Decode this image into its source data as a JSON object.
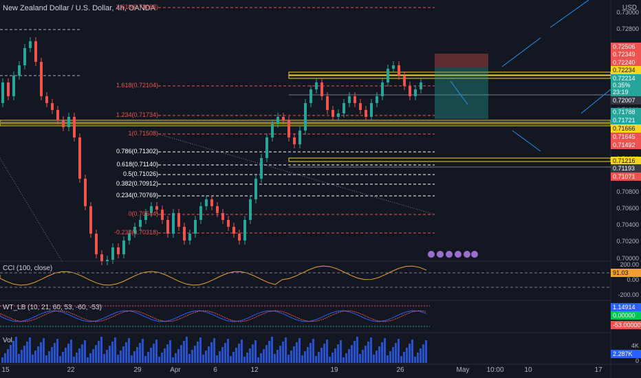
{
  "header": {
    "title": "New Zealand Dollar / U.S. Dollar, 4h, OANDA",
    "currency": "USD"
  },
  "price_axis": [
    "0.73000",
    "0.72800",
    "0.72600",
    "0.72400",
    "0.72200",
    "0.72000",
    "0.71800",
    "0.71600",
    "0.71400",
    "0.71200",
    "0.71000",
    "0.70800",
    "0.70600",
    "0.70400",
    "0.70200",
    "0.70000"
  ],
  "price_boxes": [
    {
      "value": "0.72506",
      "color": "#ef5350"
    },
    {
      "value": "0.72349",
      "color": "#ef5350"
    },
    {
      "value": "0.72240",
      "color": "#ef5350"
    },
    {
      "value": "0.72234",
      "color": "#f7d51d"
    },
    {
      "value": "0.72214",
      "color": "#26a69a"
    },
    {
      "value": "0.35%",
      "color": "#26a69a"
    },
    {
      "value": "23:19",
      "color": "#26a69a"
    },
    {
      "value": "0.72007",
      "color": "#363a45"
    },
    {
      "value": "0.71788",
      "color": "#26a69a"
    },
    {
      "value": "0.71721",
      "color": "#26a69a"
    },
    {
      "value": "0.71666",
      "color": "#f7d51d"
    },
    {
      "value": "0.71645",
      "color": "#ef5350"
    },
    {
      "value": "0.71492",
      "color": "#ef5350"
    },
    {
      "value": "0.71216",
      "color": "#f7d51d"
    },
    {
      "value": "0.71193",
      "color": "#363a45"
    },
    {
      "value": "0.71071",
      "color": "#ef5350"
    }
  ],
  "fib_levels": [
    {
      "label": "2.618(0.73068)",
      "color": "#ef5350"
    },
    {
      "label": "1.618(0.72104)",
      "color": "#ef5350"
    },
    {
      "label": "1.234(0.71734)",
      "color": "#ef5350"
    },
    {
      "label": "1(0.71508)",
      "color": "#ef5350"
    },
    {
      "label": "0.786(0.71302)",
      "color": "#ffffff"
    },
    {
      "label": "0.618(0.71140)",
      "color": "#ffffff"
    },
    {
      "label": "0.5(0.71026)",
      "color": "#ffffff"
    },
    {
      "label": "0.382(0.70912)",
      "color": "#ffffff"
    },
    {
      "label": "0.234(0.70769)",
      "color": "#ffffff"
    },
    {
      "label": "0(0.70544)",
      "color": "#ef5350"
    },
    {
      "label": "-0.234(0.70318)",
      "color": "#ef5350"
    }
  ],
  "cci": {
    "label": "CCI (100, close)",
    "axis": [
      "200.00",
      "0.00",
      "-200.00"
    ],
    "value": "91.03"
  },
  "wt": {
    "label": "WT_LB (10, 21, 60, 53, -60, -53)",
    "values": [
      "1.14914",
      "0.00000",
      "-53.00000"
    ]
  },
  "vol": {
    "label": "Vol",
    "axis": [
      "4K",
      "0"
    ],
    "value": "2.287K"
  },
  "dates": [
    "15",
    "22",
    "29",
    "Apr",
    "6",
    "12",
    "19",
    "26",
    "May",
    "10:00",
    "10",
    "17"
  ]
}
